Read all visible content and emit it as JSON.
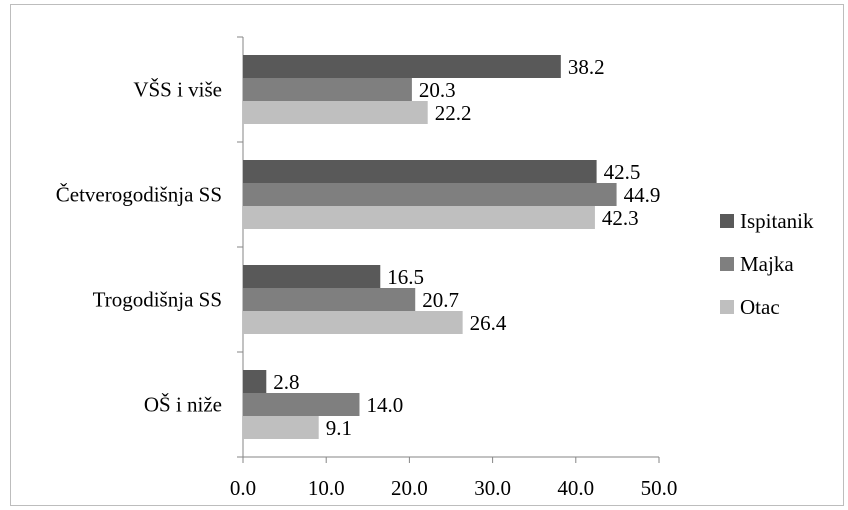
{
  "chart_data": {
    "type": "bar",
    "orientation": "horizontal",
    "categories": [
      "VŠS i više",
      "Četverogodišnja SS",
      "Trogodišnja SS",
      "OŠ i niže"
    ],
    "series": [
      {
        "name": "Ispitanik",
        "color": "#595959",
        "values": [
          38.2,
          42.5,
          16.5,
          2.8
        ],
        "labels": [
          "38.2",
          "42.5",
          "16.5",
          "2.8"
        ]
      },
      {
        "name": "Majka",
        "color": "#7f7f7f",
        "values": [
          20.3,
          44.9,
          20.7,
          14.0
        ],
        "labels": [
          "20.3",
          "44.9",
          "20.7",
          "14.0"
        ]
      },
      {
        "name": "Otac",
        "color": "#bfbfbf",
        "values": [
          22.2,
          42.3,
          26.4,
          9.1
        ],
        "labels": [
          "22.2",
          "42.3",
          "26.4",
          "9.1"
        ]
      }
    ],
    "xlim": [
      0,
      50
    ],
    "xticks": [
      "0.0",
      "10.0",
      "20.0",
      "30.0",
      "40.0",
      "50.0"
    ],
    "title": "",
    "xlabel": "",
    "ylabel": "",
    "grid": false,
    "legend_position": "right"
  }
}
